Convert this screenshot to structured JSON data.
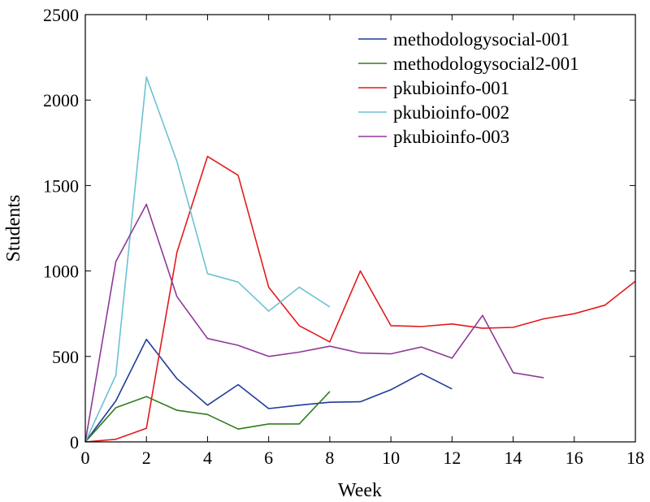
{
  "chart_data": {
    "type": "line",
    "title": "",
    "xlabel": "Week",
    "ylabel": "Students",
    "xlim": [
      0,
      18
    ],
    "ylim": [
      0,
      2500
    ],
    "xticks": [
      0,
      2,
      4,
      6,
      8,
      10,
      12,
      14,
      16,
      18
    ],
    "yticks": [
      0,
      500,
      1000,
      1500,
      2000,
      2500
    ],
    "grid": false,
    "legend_position": "top-right",
    "series": [
      {
        "name": "methodologysocial-001",
        "color": "#1f3b9b",
        "x": [
          0,
          1,
          2,
          3,
          4,
          5,
          6,
          7,
          8,
          9,
          10,
          11,
          12
        ],
        "values": [
          0,
          240,
          600,
          370,
          215,
          335,
          195,
          215,
          232,
          235,
          305,
          400,
          310
        ]
      },
      {
        "name": "methodologysocial2-001",
        "color": "#2e7d1a",
        "x": [
          0,
          1,
          2,
          3,
          4,
          5,
          6,
          7,
          8
        ],
        "values": [
          0,
          200,
          265,
          185,
          160,
          75,
          105,
          105,
          295
        ]
      },
      {
        "name": "pkubioinfo-001",
        "color": "#e31a1c",
        "x": [
          0,
          1,
          2,
          3,
          4,
          5,
          6,
          7,
          8,
          9,
          10,
          11,
          12,
          13,
          14,
          15,
          16,
          17,
          18
        ],
        "values": [
          0,
          15,
          80,
          1110,
          1670,
          1560,
          905,
          680,
          585,
          1000,
          680,
          675,
          690,
          665,
          670,
          720,
          750,
          800,
          940
        ]
      },
      {
        "name": "pkubioinfo-002",
        "color": "#6cc2d2",
        "x": [
          0,
          1,
          2,
          3,
          4,
          5,
          6,
          7,
          8
        ],
        "values": [
          0,
          390,
          2135,
          1640,
          985,
          935,
          765,
          905,
          790
        ]
      },
      {
        "name": "pkubioinfo-003",
        "color": "#8e3a97",
        "x": [
          0,
          1,
          2,
          3,
          4,
          5,
          6,
          7,
          8,
          9,
          10,
          11,
          12,
          13,
          14,
          15
        ],
        "values": [
          0,
          1055,
          1390,
          850,
          605,
          565,
          500,
          525,
          560,
          520,
          515,
          555,
          490,
          740,
          405,
          375
        ]
      }
    ]
  }
}
